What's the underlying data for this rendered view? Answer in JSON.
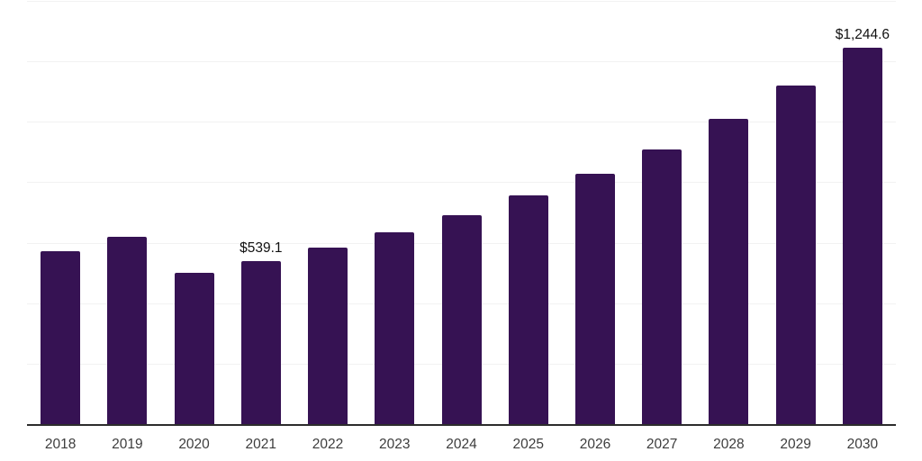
{
  "chart_data": {
    "type": "bar",
    "title": "",
    "xlabel": "",
    "ylabel": "",
    "categories": [
      "2018",
      "2019",
      "2020",
      "2021",
      "2022",
      "2023",
      "2024",
      "2025",
      "2026",
      "2027",
      "2028",
      "2029",
      "2030"
    ],
    "values": [
      571.0,
      620.0,
      501.0,
      539.1,
      584.0,
      635.0,
      690.0,
      757.0,
      829.0,
      909.0,
      1011.0,
      1121.0,
      1244.6
    ],
    "data_labels": [
      "",
      "",
      "",
      "$539.1",
      "",
      "",
      "",
      "",
      "",
      "",
      "",
      "",
      "$1,244.6"
    ],
    "currency_prefix": "$",
    "ylim": [
      0,
      1400
    ],
    "gridline_step": 200,
    "grid": "horizontal",
    "y_axis_tick_labels_visible": false,
    "x_axis_line_visible": true,
    "legend": "none",
    "colors": {
      "bar": "#361253",
      "axis_line": "#2c2c2c",
      "gridline": "#f2f2f2",
      "data_label_text": "#111111",
      "x_tick_label_text": "#3d3d3d",
      "background": "#ffffff"
    }
  }
}
